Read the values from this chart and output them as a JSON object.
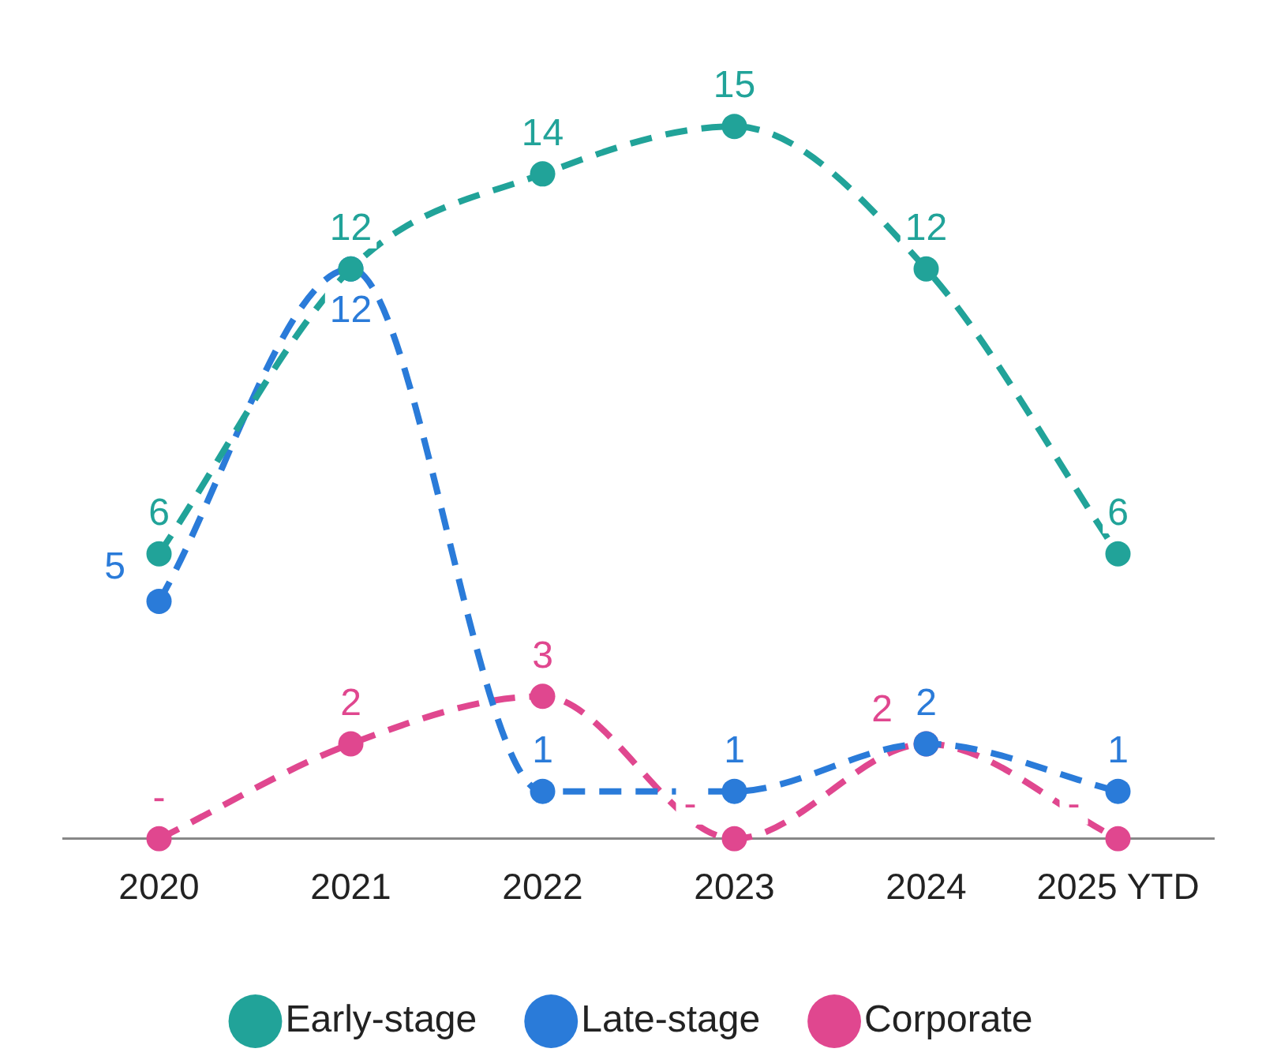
{
  "chart_data": {
    "type": "line",
    "categories": [
      "2020",
      "2021",
      "2022",
      "2023",
      "2024",
      "2025 YTD"
    ],
    "series": [
      {
        "name": "Early-stage",
        "color": "#21a399",
        "values": [
          6,
          12,
          14,
          15,
          12,
          6
        ],
        "value_labels": [
          "6",
          "12",
          "14",
          "15",
          "12",
          "6"
        ]
      },
      {
        "name": "Late-stage",
        "color": "#2a7bd9",
        "values": [
          5,
          12,
          1,
          1,
          2,
          1
        ],
        "value_labels": [
          "5",
          "12",
          "1",
          "1",
          "2",
          "1"
        ]
      },
      {
        "name": "Corporate",
        "color": "#e0478f",
        "values": [
          0,
          2,
          3,
          0,
          2,
          0
        ],
        "value_labels": [
          "-",
          "2",
          "3",
          "-",
          "2",
          "-"
        ]
      }
    ],
    "line_style": "dashed",
    "marker": "circle",
    "legend": "bottom",
    "grid": false,
    "tick_labels": "x"
  }
}
